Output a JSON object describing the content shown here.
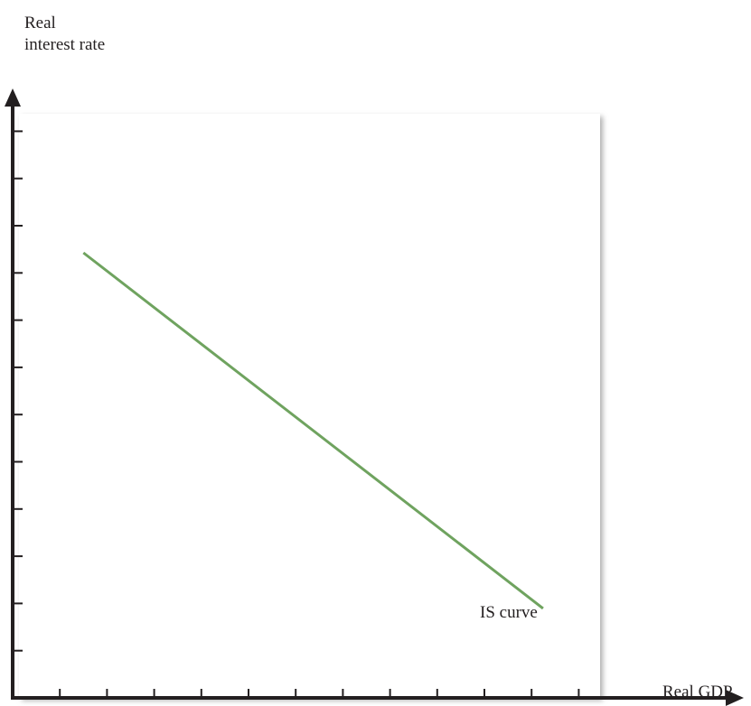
{
  "chart_data": {
    "type": "line",
    "title": "",
    "xlabel": "Real GDP",
    "ylabel_lines": [
      "Real",
      "interest rate"
    ],
    "xlim": [
      0,
      12
    ],
    "ylim": [
      0,
      12.5
    ],
    "x_tick_count": 12,
    "y_tick_count": 12,
    "x_tick_labels": [],
    "y_tick_labels": [],
    "grid": false,
    "background_panel": true,
    "series": [
      {
        "name": "IS curve",
        "color": "#6fa35f",
        "x": [
          1.5,
          11.25
        ],
        "y": [
          9.45,
          1.9
        ]
      }
    ],
    "annotations": [
      {
        "text": "IS curve",
        "x": 9.6,
        "y": 1.45
      }
    ]
  },
  "colors": {
    "axis": "#231f20",
    "line": "#6fa35f",
    "panel": "#ffffff",
    "panel_shadow": "#b9b9b9"
  }
}
